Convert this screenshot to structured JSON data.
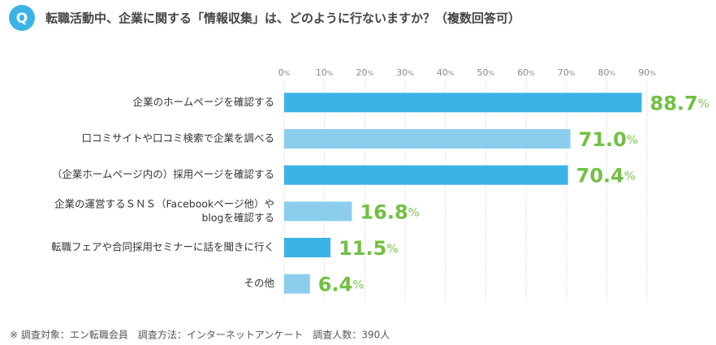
{
  "question_badge": "Q",
  "chart_data": {
    "type": "hbar",
    "title": "転職活動中、企業に関する「情報収集」は、どのように行ないますか？（複数回答可）",
    "categories": [
      "企業のホームページを確認する",
      "口コミサイトや口コミ検索で企業を調べる",
      "（企業ホームページ内の）採用ページを確認する",
      [
        "企業の運営するＳＮＳ（Facebookページ他）や",
        "blogを確認する"
      ],
      "転職フェアや合同採用セミナーに話を聞きに行く",
      "その他"
    ],
    "values": [
      88.7,
      71.0,
      70.4,
      16.8,
      11.5,
      6.4
    ],
    "value_labels": [
      "88.7%",
      "71.0%",
      "70.4%",
      "16.8%",
      "11.5%",
      "6.4%"
    ],
    "colors": [
      "#3bb3e6",
      "#8ccdee",
      "#3bb3e6",
      "#8ccdee",
      "#3bb3e6",
      "#8ccdee"
    ],
    "label_color": "#72c043",
    "xlim": [
      0,
      90
    ],
    "xticks": [
      {
        "value": 0,
        "label": "0%"
      },
      {
        "value": 10,
        "label": "10%"
      },
      {
        "value": 20,
        "label": "20%"
      },
      {
        "value": 30,
        "label": "30%"
      },
      {
        "value": 40,
        "label": "40%"
      },
      {
        "value": 50,
        "label": "50%"
      },
      {
        "value": 60,
        "label": "60%"
      },
      {
        "value": 70,
        "label": "70%"
      },
      {
        "value": 80,
        "label": "80%"
      },
      {
        "value": 90,
        "label": "90%"
      }
    ],
    "grid": true,
    "note": "※ 調査対象：エン転職会員　調査方法：インターネットアンケート　調査人数：390人"
  }
}
